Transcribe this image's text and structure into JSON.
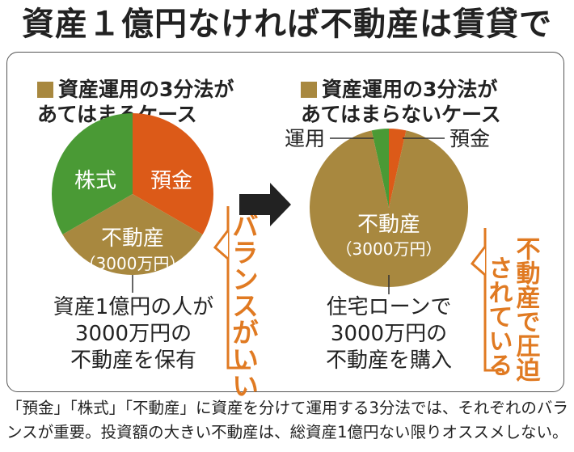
{
  "title": "資産１億円なければ不動産は賃貸で",
  "colors": {
    "stock": "#4a9a35",
    "deposit": "#dc5a18",
    "realestate": "#a8883f",
    "callout": "#e07a22",
    "arrow": "#222222"
  },
  "left": {
    "legend": [
      "資産運用の3分法が",
      "あてはまるケース"
    ],
    "pie": [
      {
        "label": "株式",
        "sub": "",
        "value": 33.3
      },
      {
        "label": "預金",
        "sub": "",
        "value": 33.3
      },
      {
        "label": "不動産",
        "sub": "（3000万円）",
        "value": 33.3
      }
    ],
    "caption": [
      "資産1億円の人が",
      "3000万円の",
      "不動産を保有"
    ],
    "callout": "バランスがいい"
  },
  "right": {
    "legend": [
      "資産運用の3分法が",
      "あてはまらないケース"
    ],
    "pie": [
      {
        "label": "運用",
        "value": 3.5
      },
      {
        "label": "預金",
        "value": 3.5
      },
      {
        "label": "不動産",
        "sub": "（3000万円）",
        "value": 93
      }
    ],
    "caption": [
      "住宅ローンで",
      "3000万円の",
      "不動産を購入"
    ],
    "callout": [
      "不動産で圧迫",
      "されている"
    ]
  },
  "footnote": [
    "「預金」「株式」「不動産」に資産を分けて運用する3分法では、それぞれのバラ",
    "ンスが重要。投資額の大きい不動産は、総資産1億円ない限りオススメしない。"
  ]
}
